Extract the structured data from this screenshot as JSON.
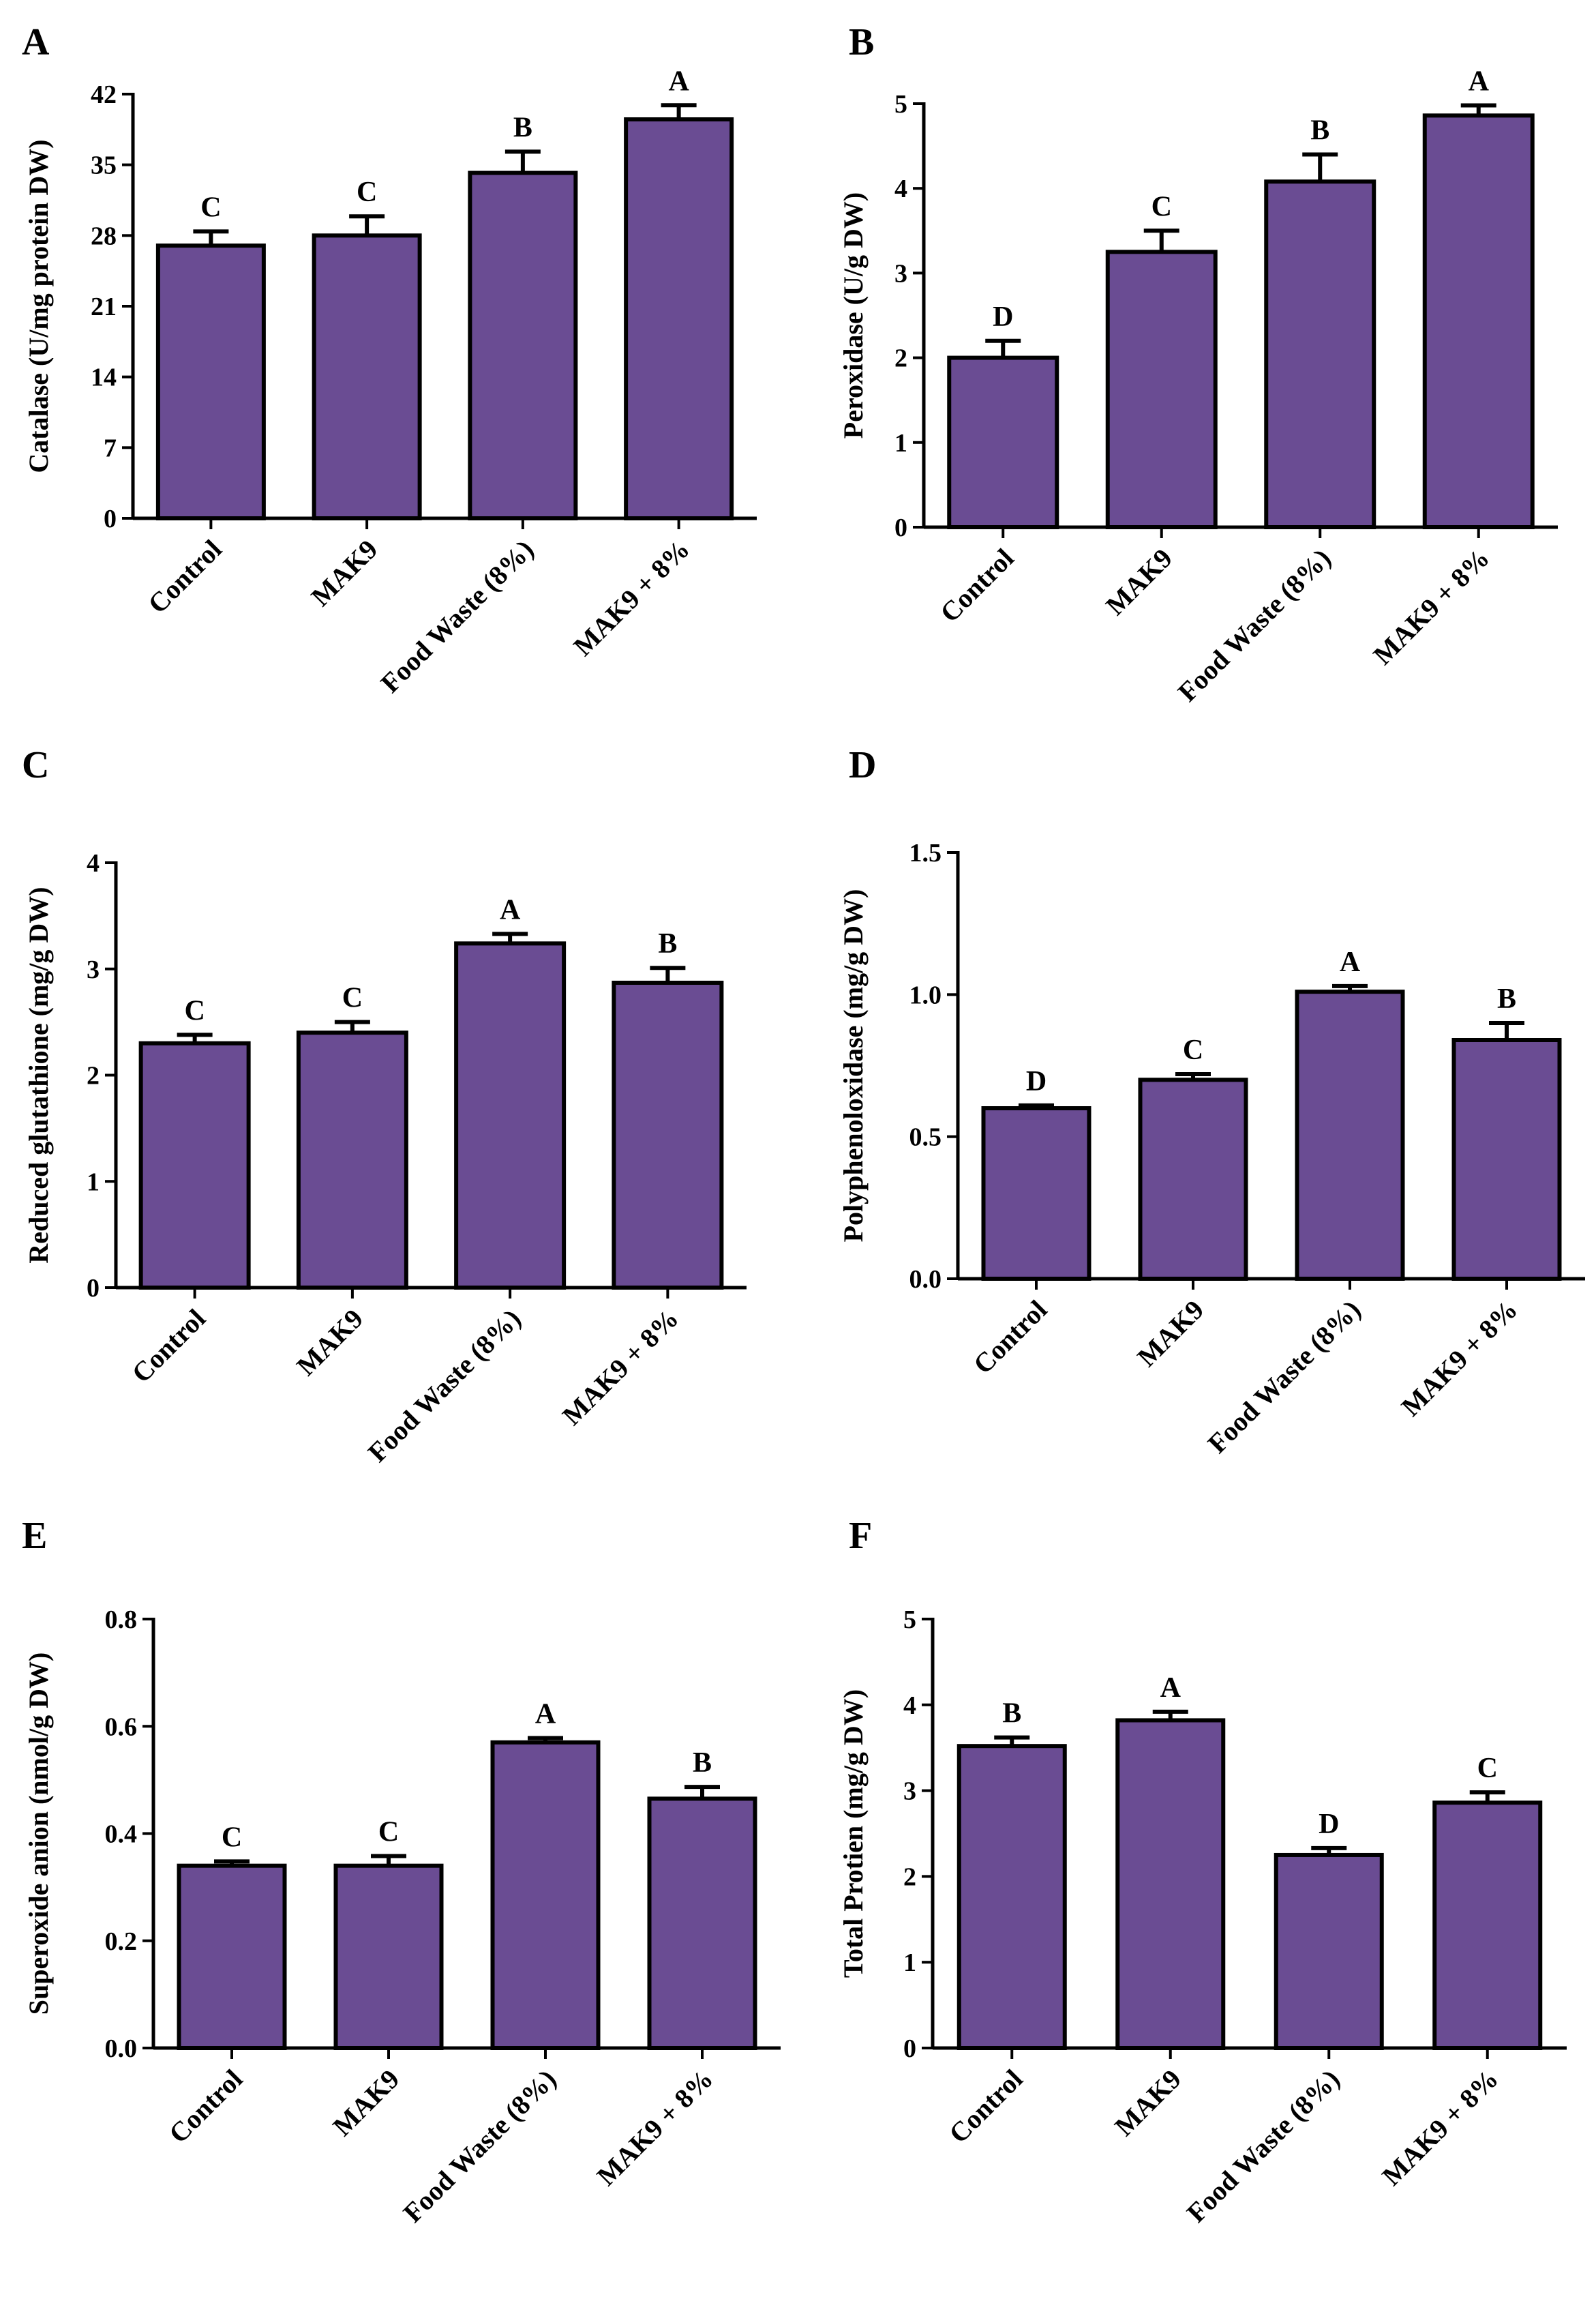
{
  "chart_data": [
    {
      "id": "A",
      "type": "bar",
      "panel_label": "A",
      "ylabel": "Catalase (U/mg protein DW)",
      "categories": [
        "Control",
        "MAK9",
        "Food Waste (8%)",
        "MAK9 + 8%"
      ],
      "values": [
        27.0,
        28.0,
        34.2,
        39.5
      ],
      "errors": [
        1.4,
        1.9,
        2.1,
        1.4
      ],
      "significance": [
        "C",
        "C",
        "B",
        "A"
      ],
      "ylim": [
        0,
        42
      ],
      "yticks": [
        0,
        7,
        14,
        21,
        28,
        35,
        42
      ],
      "ytick_labels": [
        "0",
        "7",
        "14",
        "21",
        "28",
        "35",
        "42"
      ]
    },
    {
      "id": "B",
      "type": "bar",
      "panel_label": "B",
      "ylabel": "Peroxidase (U/g DW)",
      "categories": [
        "Control",
        "MAK9",
        "Food Waste (8%)",
        "MAK9 + 8%"
      ],
      "values": [
        2.0,
        3.25,
        4.08,
        4.86
      ],
      "errors": [
        0.2,
        0.25,
        0.32,
        0.12
      ],
      "significance": [
        "D",
        "C",
        "B",
        "A"
      ],
      "ylim": [
        0,
        5
      ],
      "yticks": [
        0,
        1,
        2,
        3,
        4,
        5
      ],
      "ytick_labels": [
        "0",
        "1",
        "2",
        "3",
        "4",
        "5"
      ]
    },
    {
      "id": "C",
      "type": "bar",
      "panel_label": "C",
      "ylabel": "Reduced glutathione (mg/g DW)",
      "categories": [
        "Control",
        "MAK9",
        "Food Waste (8%)",
        "MAK9 + 8%"
      ],
      "values": [
        2.3,
        2.4,
        3.24,
        2.87
      ],
      "errors": [
        0.08,
        0.1,
        0.09,
        0.14
      ],
      "significance": [
        "C",
        "C",
        "A",
        "B"
      ],
      "ylim": [
        0,
        4
      ],
      "yticks": [
        0,
        1,
        2,
        3,
        4
      ],
      "ytick_labels": [
        "0",
        "1",
        "2",
        "3",
        "4"
      ]
    },
    {
      "id": "D",
      "type": "bar",
      "panel_label": "D",
      "ylabel": "Polyphenoloxidase (mg/g DW)",
      "categories": [
        "Control",
        "MAK9",
        "Food Waste (8%)",
        "MAK9 + 8%"
      ],
      "values": [
        0.6,
        0.7,
        1.01,
        0.84
      ],
      "errors": [
        0.01,
        0.02,
        0.02,
        0.06
      ],
      "significance": [
        "D",
        "C",
        "A",
        "B"
      ],
      "ylim": [
        0,
        1.5
      ],
      "yticks": [
        0,
        0.5,
        1.0,
        1.5
      ],
      "ytick_labels": [
        "0.0",
        "0.5",
        "1.0",
        "1.5"
      ]
    },
    {
      "id": "E",
      "type": "bar",
      "panel_label": "E",
      "ylabel": "Superoxide anion (nmol/g DW)",
      "categories": [
        "Control",
        "MAK9",
        "Food Waste (8%)",
        "MAK9 + 8%"
      ],
      "values": [
        0.34,
        0.34,
        0.57,
        0.465
      ],
      "errors": [
        0.008,
        0.018,
        0.008,
        0.022
      ],
      "significance": [
        "C",
        "C",
        "A",
        "B"
      ],
      "ylim": [
        0,
        0.8
      ],
      "yticks": [
        0,
        0.2,
        0.4,
        0.6,
        0.8
      ],
      "ytick_labels": [
        "0.0",
        "0.2",
        "0.4",
        "0.6",
        "0.8"
      ]
    },
    {
      "id": "F",
      "type": "bar",
      "panel_label": "F",
      "ylabel": "Total Protien (mg/g DW)",
      "categories": [
        "Control",
        "MAK9",
        "Food Waste (8%)",
        "MAK9 + 8%"
      ],
      "values": [
        3.52,
        3.82,
        2.25,
        2.86
      ],
      "errors": [
        0.1,
        0.1,
        0.08,
        0.12
      ],
      "significance": [
        "B",
        "A",
        "D",
        "C"
      ],
      "ylim": [
        0,
        5
      ],
      "yticks": [
        0,
        1,
        2,
        3,
        4,
        5
      ],
      "ytick_labels": [
        "0",
        "1",
        "2",
        "3",
        "4",
        "5"
      ]
    }
  ]
}
